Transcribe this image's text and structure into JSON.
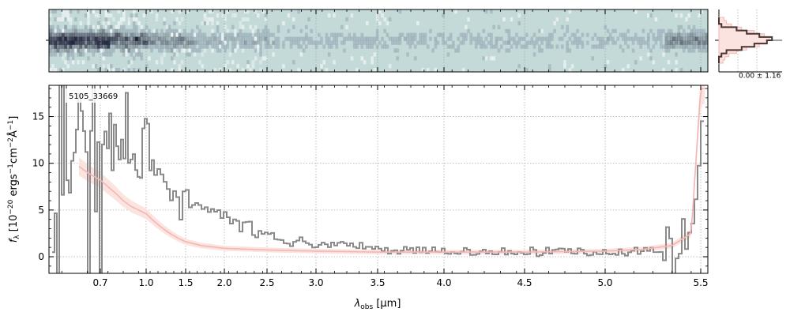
{
  "figure": {
    "object_label": "5105_33669",
    "side_panel_label": "0.00 ± 1.16"
  },
  "colors": {
    "spectrum": "#8a8a8a",
    "model": "#f4b6b2",
    "model_band": "#fbe3e0",
    "histogram": "#4a3431",
    "image_background": "#c4dad8",
    "image_dark": "#1e2038",
    "grid": "#b0b0b0"
  },
  "chart_data": [
    {
      "type": "line",
      "panel": "1d-spectrum",
      "xlabel": "λobs [μm]",
      "xlabel_parts": {
        "symbol": "λ",
        "subscript": "obs",
        "unit": " [μm]"
      },
      "ylabel": "fλ [10^-20 ergs^-1 cm^-2 Å^-1]",
      "ylabel_parts": {
        "f": "f",
        "sub": "λ",
        "open": " [10",
        "exp1": "−20",
        "mid1": " ergs",
        "exp2": "−1",
        "mid2": "cm",
        "exp3": "−2",
        "mid3": "Å",
        "exp4": "−1",
        "close": "]"
      },
      "x_scale": "nonlinear (compressed toward long wavelengths)",
      "xlim": [
        0.5,
        5.55
      ],
      "ylim": [
        -1.8,
        18.2
      ],
      "x_ticks": [
        0.7,
        1.0,
        1.5,
        2.0,
        2.5,
        3.0,
        3.5,
        4.0,
        4.5,
        5.0,
        5.5
      ],
      "x_tick_labels": [
        "0.7",
        "1.0",
        "1.5",
        "2.0",
        "2.5",
        "3.0",
        "3.5",
        "4.0",
        "4.5",
        "5.0",
        "5.5"
      ],
      "y_ticks": [
        0,
        5,
        10,
        15
      ],
      "y_tick_labels": [
        "0",
        "5",
        "10",
        "15"
      ],
      "grid": true,
      "series": [
        {
          "role": "observed spectrum",
          "style": "steps",
          "x": [
            0.55,
            0.6,
            0.65,
            0.7,
            0.75,
            0.8,
            0.85,
            0.9,
            0.95,
            1.0,
            1.1,
            1.2,
            1.3,
            1.4,
            1.5,
            1.6,
            1.7,
            1.8,
            1.9,
            2.0,
            2.1,
            2.2,
            2.3,
            2.4,
            2.5,
            2.6,
            2.7,
            2.8,
            2.9,
            3.0,
            3.2,
            3.4,
            3.6,
            3.8,
            4.0,
            4.2,
            4.4,
            4.6,
            4.8,
            5.0,
            5.2,
            5.3,
            5.4,
            5.45,
            5.5
          ],
          "y": [
            3.0,
            15.0,
            13.5,
            11.0,
            15.0,
            10.0,
            12.0,
            10.0,
            9.5,
            13.0,
            10.0,
            8.0,
            7.5,
            6.5,
            5.5,
            5.0,
            4.8,
            4.6,
            4.5,
            4.3,
            4.0,
            3.5,
            3.0,
            2.5,
            2.2,
            1.8,
            1.6,
            1.6,
            1.5,
            1.4,
            1.2,
            1.0,
            0.8,
            0.6,
            0.5,
            0.5,
            0.4,
            0.6,
            0.5,
            0.5,
            0.6,
            0.8,
            1.0,
            3.0,
            15.0
          ]
        },
        {
          "role": "model",
          "style": "line",
          "x": [
            0.6,
            0.65,
            0.7,
            0.75,
            0.8,
            0.85,
            0.9,
            0.95,
            1.0,
            1.1,
            1.2,
            1.3,
            1.4,
            1.5,
            1.7,
            2.0,
            2.3,
            2.6,
            3.0,
            3.5,
            4.0,
            4.5,
            5.0,
            5.2,
            5.35,
            5.45,
            5.5
          ],
          "y": [
            10.0,
            9.0,
            8.2,
            7.5,
            6.8,
            6.0,
            5.4,
            5.0,
            4.6,
            3.8,
            3.1,
            2.5,
            2.0,
            1.6,
            1.2,
            0.9,
            0.8,
            0.7,
            0.6,
            0.5,
            0.5,
            0.5,
            0.6,
            0.8,
            1.2,
            2.5,
            18.0
          ]
        }
      ]
    },
    {
      "type": "heatmap",
      "panel": "2d-spectrum",
      "description": "2D spectral image aligned with the wavelength axis of the spectrum panel",
      "xlim": [
        0.5,
        5.55
      ]
    },
    {
      "type": "line",
      "panel": "spatial-profile",
      "series": [
        {
          "role": "profile histogram",
          "style": "steps-horizontal"
        },
        {
          "role": "model profile",
          "style": "steps-horizontal"
        }
      ]
    }
  ]
}
